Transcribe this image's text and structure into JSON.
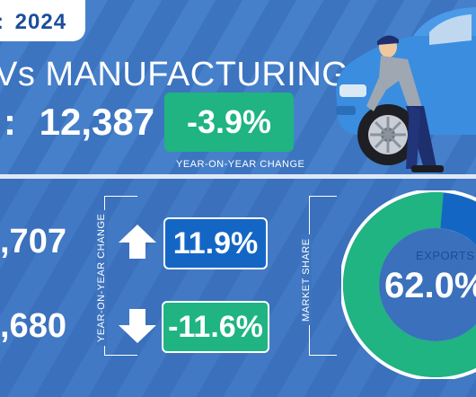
{
  "header": {
    "year": "2024",
    "headline": "Vs MANUFACTURING",
    "total_label": ":",
    "total_value": "12,387"
  },
  "yoy": {
    "change": "-3.9%",
    "label": "YEAR-ON-YEAR CHANGE"
  },
  "breakdown": {
    "vertical_label": "YEAR-ON-YEAR CHANGE",
    "rows": [
      {
        "value": ",707",
        "change": "11.9%",
        "direction": "up",
        "color": "#1466c4"
      },
      {
        "value": ",680",
        "change": "-11.6%",
        "direction": "down",
        "color": "#1fb482"
      }
    ]
  },
  "market_share": {
    "vertical_label": "MARKET SHARE",
    "label": "EXPORTS",
    "value": "62.0%",
    "fraction": 0.62,
    "colors": {
      "exports": "#1fb482",
      "other": "#1466c4"
    }
  },
  "illustration": {
    "icon": "mechanic-with-car-icon"
  }
}
